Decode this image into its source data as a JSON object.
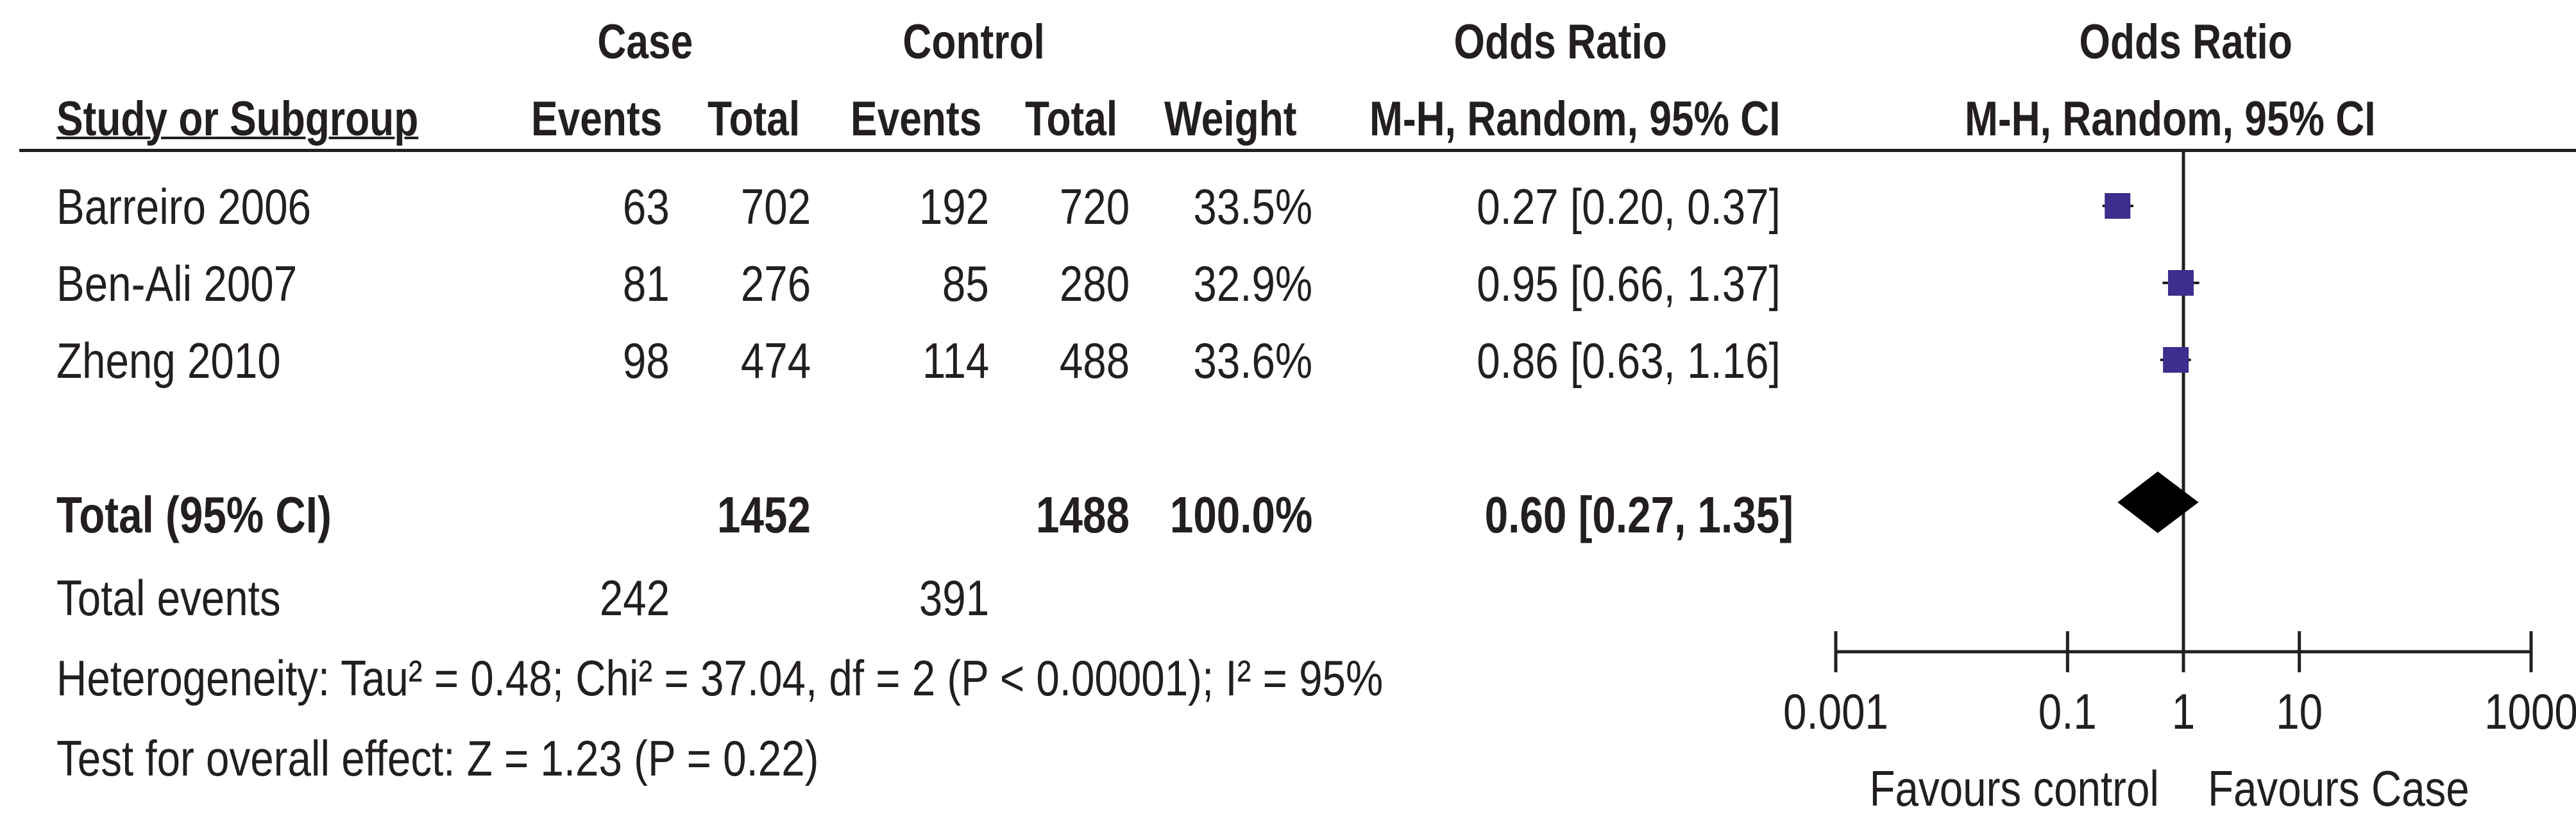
{
  "header": {
    "case_group": "Case",
    "control_group": "Control",
    "or_table_title": "Odds Ratio",
    "or_plot_title": "Odds Ratio",
    "study_col": "Study or Subgroup",
    "events_case": "Events",
    "total_case": "Total",
    "events_control": "Events",
    "total_control": "Total",
    "weight_col": "Weight",
    "method_table": "M-H, Random, 95% CI",
    "method_plot": "M-H, Random, 95% CI"
  },
  "rows": [
    {
      "study": "Barreiro 2006",
      "case_events": "63",
      "case_total": "702",
      "control_events": "192",
      "control_total": "720",
      "weight": "33.5%",
      "ci_text": "0.27 [0.20, 0.37]"
    },
    {
      "study": "Ben-Ali 2007",
      "case_events": "81",
      "case_total": "276",
      "control_events": "85",
      "control_total": "280",
      "weight": "32.9%",
      "ci_text": "0.95 [0.66, 1.37]"
    },
    {
      "study": "Zheng 2010",
      "case_events": "98",
      "case_total": "474",
      "control_events": "114",
      "control_total": "488",
      "weight": "33.6%",
      "ci_text": "0.86 [0.63, 1.16]"
    }
  ],
  "total": {
    "label": "Total (95% CI)",
    "case_total": "1452",
    "control_total": "1488",
    "weight": "100.0%",
    "ci_text": "0.60 [0.27, 1.35]"
  },
  "events": {
    "label": "Total events",
    "case": "242",
    "control": "391"
  },
  "heterogeneity": "Heterogeneity: Tau² = 0.48; Chi² = 37.04, df = 2 (P < 0.00001); I² = 95%",
  "overall_effect": "Test for overall effect: Z = 1.23 (P = 0.22)",
  "colors": {
    "marker": "#3b2e8c",
    "diamond": "#000000",
    "text": "#231f20"
  },
  "chart_data": {
    "type": "forest",
    "scale": "log",
    "xlim": [
      0.001,
      1000
    ],
    "x_ticks": [
      0.001,
      0.1,
      1,
      10,
      1000
    ],
    "x_tick_labels": [
      "0.001",
      "0.1",
      "1",
      "10",
      "1000"
    ],
    "favours_left": "Favours control",
    "favours_right": "Favours Case",
    "studies": [
      {
        "name": "Barreiro 2006",
        "or": 0.27,
        "lower": 0.2,
        "upper": 0.37,
        "weight": 33.5
      },
      {
        "name": "Ben-Ali 2007",
        "or": 0.95,
        "lower": 0.66,
        "upper": 1.37,
        "weight": 32.9
      },
      {
        "name": "Zheng 2010",
        "or": 0.86,
        "lower": 0.63,
        "upper": 1.16,
        "weight": 33.6
      }
    ],
    "pooled": {
      "or": 0.6,
      "lower": 0.27,
      "upper": 1.35
    }
  }
}
